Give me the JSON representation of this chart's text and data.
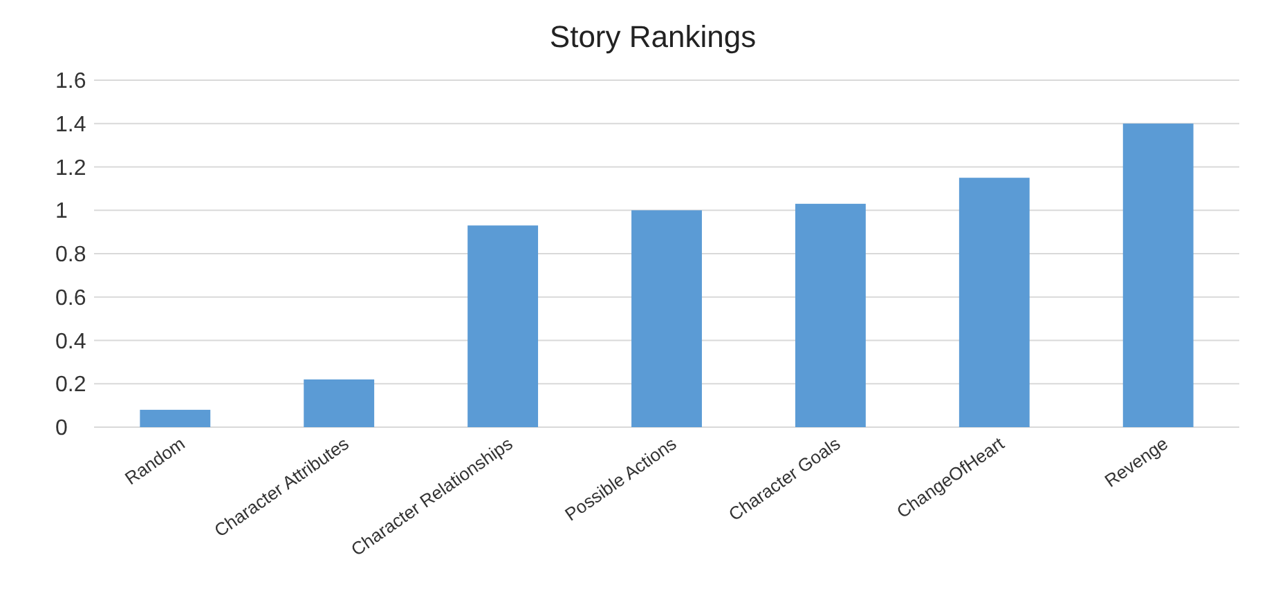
{
  "chart_data": {
    "type": "bar",
    "title": "Story Rankings",
    "categories": [
      "Random",
      "Character Attributes",
      "Character Relationships",
      "Possible Actions",
      "Character Goals",
      "ChangeOfHeart",
      "Revenge"
    ],
    "values": [
      0.08,
      0.22,
      0.93,
      1.0,
      1.03,
      1.15,
      1.4
    ],
    "color": "#5b9bd5",
    "ylim": [
      0,
      1.6
    ],
    "yticks": [
      0,
      0.2,
      0.4,
      0.6,
      0.8,
      1,
      1.2,
      1.4,
      1.6
    ],
    "grid": "y"
  }
}
